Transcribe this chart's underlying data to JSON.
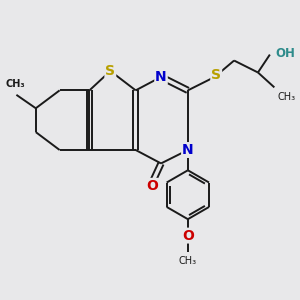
{
  "bg_color": "#e8e8ea",
  "bond_color": "#1a1a1a",
  "bond_width": 1.4,
  "S_color": "#b8a000",
  "N_color": "#0000cc",
  "O_color": "#cc0000",
  "OH_color": "#2e8b8b",
  "figsize": [
    3.0,
    3.0
  ],
  "dpi": 100,
  "xlim": [
    0,
    10
  ],
  "ylim": [
    0,
    10
  ]
}
